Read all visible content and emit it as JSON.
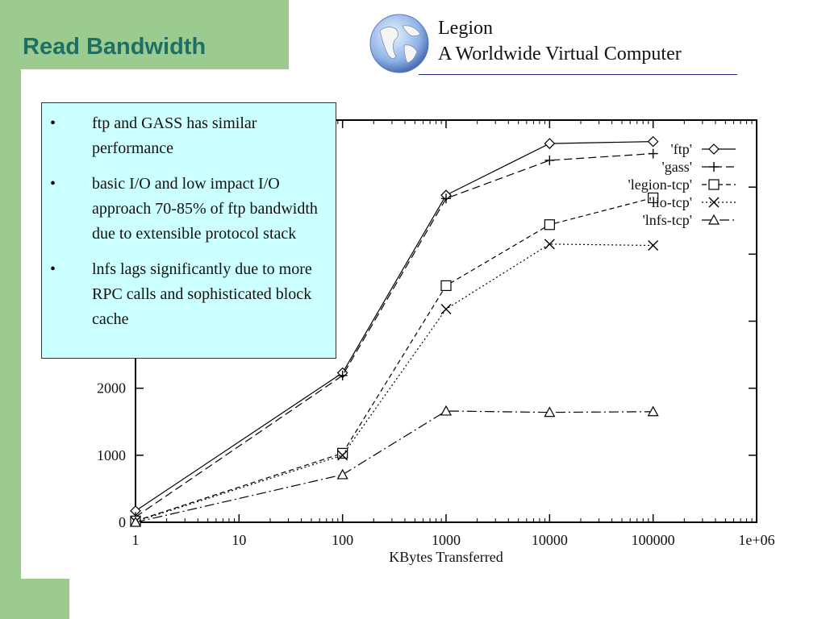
{
  "slide": {
    "title": "Read Bandwidth",
    "logo_line1": "Legion",
    "logo_line2": "A Worldwide Virtual Computer"
  },
  "callout": {
    "bullets": [
      "ftp and GASS has similar performance",
      "basic I/O and low impact I/O approach 70-85% of ftp bandwidth due to extensible protocol stack",
      "lnfs lags significantly due to more RPC calls and sophisticated block cache"
    ]
  },
  "chart_data": {
    "type": "line",
    "xscale": "log",
    "xlabel": "KBytes Transferred",
    "ylabel": "",
    "xlim": [
      1,
      1000000
    ],
    "ylim": [
      0,
      6000
    ],
    "x_ticks": [
      "1",
      "10",
      "100",
      "1000",
      "10000",
      "100000",
      "1e+06"
    ],
    "y_ticks": [
      "0",
      "1000",
      "2000"
    ],
    "x": [
      1,
      100,
      1000,
      10000,
      100000
    ],
    "series": [
      {
        "name": "'ftp'",
        "marker": "diamond",
        "dash": "",
        "values": [
          170,
          2230,
          4880,
          5650,
          5680
        ]
      },
      {
        "name": "'gass'",
        "marker": "plus",
        "dash": "10 5",
        "values": [
          80,
          2190,
          4830,
          5400,
          5500
        ]
      },
      {
        "name": "'legion-tcp'",
        "marker": "square",
        "dash": "6 4",
        "values": [
          20,
          1030,
          3530,
          4440,
          4840
        ]
      },
      {
        "name": "'lio-tcp'",
        "marker": "cross",
        "dash": "2 3",
        "values": [
          10,
          1000,
          3180,
          4150,
          4130
        ]
      },
      {
        "name": "'lnfs-tcp'",
        "marker": "triangle",
        "dash": "12 4 2 4",
        "values": [
          0,
          710,
          1660,
          1640,
          1650
        ]
      }
    ]
  }
}
